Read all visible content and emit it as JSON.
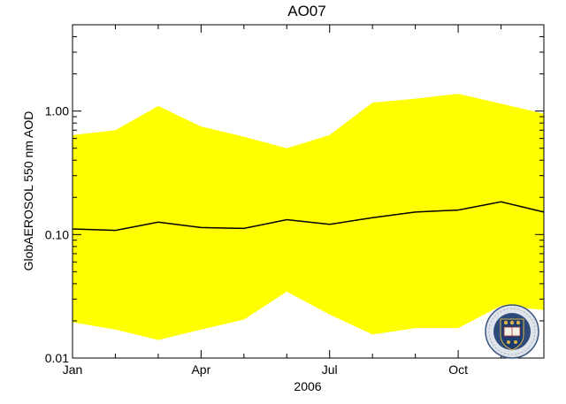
{
  "chart_data": {
    "type": "area",
    "title": "AO07",
    "xlabel": "2006",
    "ylabel": "GlobAEROSOL 550 nm AOD",
    "yscale": "log",
    "ylim": [
      0.01,
      5.0
    ],
    "xlim": [
      1,
      12
    ],
    "x_ticks": [
      {
        "label": "Jan",
        "value": 1
      },
      {
        "label": "Apr",
        "value": 4
      },
      {
        "label": "Jul",
        "value": 7
      },
      {
        "label": "Oct",
        "value": 10
      }
    ],
    "y_ticks": [
      {
        "label": "0.01",
        "value": 0.01
      },
      {
        "label": "0.10",
        "value": 0.1
      },
      {
        "label": "1.00",
        "value": 1.0
      }
    ],
    "x": [
      1,
      2,
      3,
      4,
      5,
      6,
      7,
      8,
      9,
      10,
      11,
      12
    ],
    "band": {
      "color": "#ffff00",
      "upper": [
        0.64,
        0.7,
        1.1,
        0.75,
        0.62,
        0.5,
        0.64,
        1.17,
        1.26,
        1.38,
        1.15,
        0.95
      ],
      "lower": [
        0.0195,
        0.017,
        0.014,
        0.017,
        0.0205,
        0.0345,
        0.0225,
        0.0155,
        0.0175,
        0.0175,
        0.0265,
        0.0245
      ]
    },
    "series": [
      {
        "color": "#000000",
        "values": [
          0.111,
          0.108,
          0.126,
          0.114,
          0.112,
          0.132,
          0.121,
          0.137,
          0.152,
          0.158,
          0.184,
          0.152
        ]
      }
    ],
    "grid": false
  },
  "logo": {
    "name": "university-of-oxford-crest",
    "text": "UNIVERSITY OF OXFORD"
  }
}
